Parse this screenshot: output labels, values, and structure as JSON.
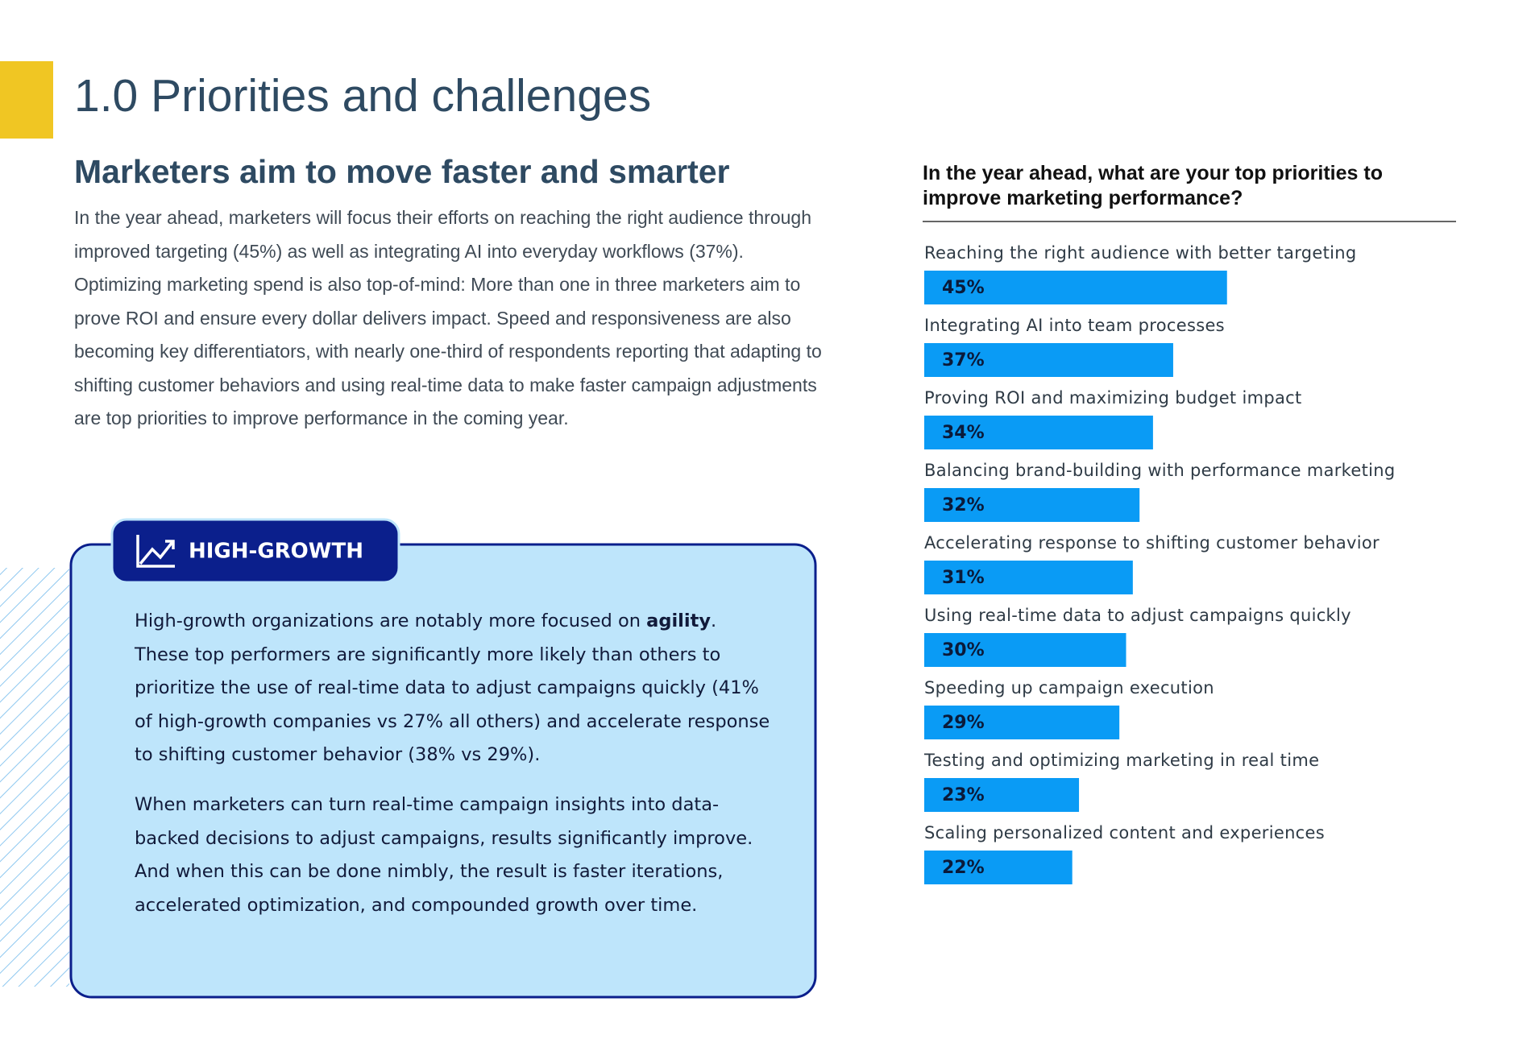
{
  "header": {
    "title": "1.0 Priorities and challenges"
  },
  "article": {
    "subtitle": "Marketers aim to move faster and smarter",
    "body": "In the year ahead, marketers will focus their efforts on reaching the right audience through improved targeting (45%) as well as integrating AI into everyday workflows (37%). Optimizing marketing spend is also top-of-mind: More than one in three marketers aim to prove ROI and ensure every dollar delivers impact. Speed and responsiveness are also becoming key differentiators, with nearly one-third of respondents reporting that adapting to shifting customer behaviors and using real-time data to make faster campaign adjustments are top priorities to improve performance in the coming year."
  },
  "callout": {
    "tag": "HIGH-GROWTH",
    "paragraph1": {
      "before": "High-growth organizations are notably more focused on ",
      "bold": "agility",
      "after": ". These top performers are significantly more likely than others to prioritize the use of real-time data to adjust campaigns quickly (41% of high-growth companies vs 27% all others) and accelerate response to shifting customer behavior (38% vs 29%)."
    },
    "paragraph2": "When marketers can turn real-time campaign insights into data-backed decisions to adjust campaigns, results significantly improve. And when this can be done nimbly, the result is faster iterations, accelerated optimization, and compounded growth over time."
  },
  "chart_data": {
    "type": "hbar",
    "title": "In the year ahead, what are your top priorities to improve marketing performance?",
    "categories": [
      "Reaching the right audience with better targeting",
      "Integrating AI into team processes",
      "Proving ROI and maximizing budget impact",
      "Balancing brand-building with performance marketing",
      "Accelerating response to shifting customer behavior",
      "Using real-time data to adjust campaigns quickly",
      "Speeding up campaign execution",
      "Testing and optimizing marketing in real time",
      "Scaling personalized content and experiences"
    ],
    "values": [
      45,
      37,
      34,
      32,
      31,
      30,
      29,
      23,
      22
    ],
    "value_labels": [
      "45%",
      "37%",
      "34%",
      "32%",
      "31%",
      "30%",
      "29%",
      "23%",
      "22%"
    ],
    "color": "#0a9bf5"
  }
}
